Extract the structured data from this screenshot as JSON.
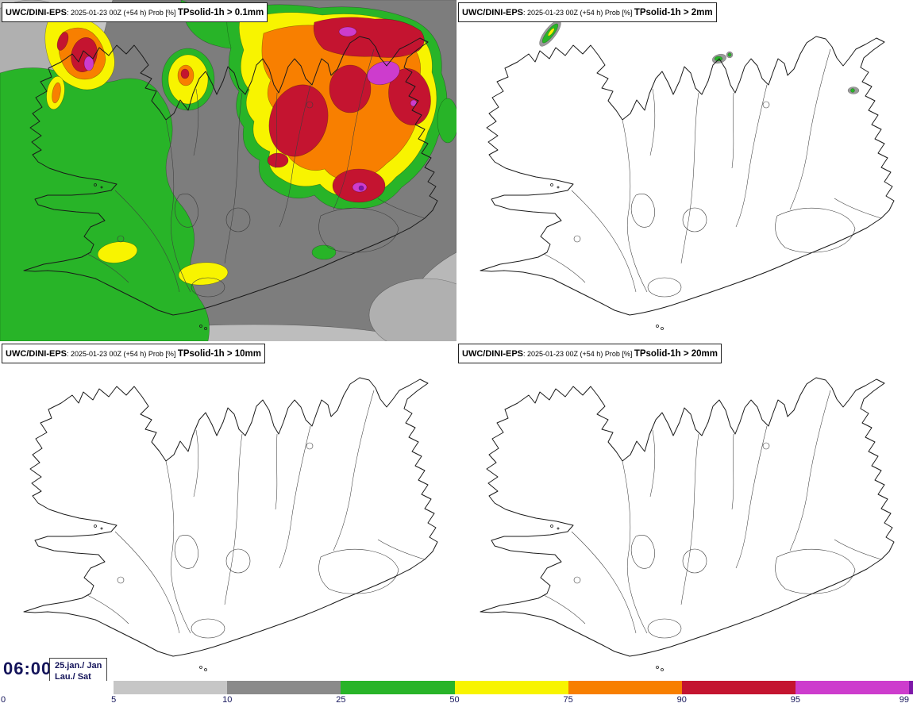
{
  "panels": [
    {
      "model": "UWC/DINI-EPS",
      "meta": ": 2025-01-23 00Z (+54 h) Prob [%] ",
      "param": "TPsolid-1h > 0.1mm"
    },
    {
      "model": "UWC/DINI-EPS",
      "meta": ": 2025-01-23 00Z (+54 h) Prob [%] ",
      "param": "TPsolid-1h > 2mm"
    },
    {
      "model": "UWC/DINI-EPS",
      "meta": ": 2025-01-23 00Z (+54 h) Prob [%] ",
      "param": "TPsolid-1h > 10mm"
    },
    {
      "model": "UWC/DINI-EPS",
      "meta": ": 2025-01-23 00Z (+54 h) Prob [%] ",
      "param": "TPsolid-1h > 20mm"
    }
  ],
  "footer": {
    "time": "06:00",
    "date_line1": "25.jan./ Jan",
    "date_line2": "Lau./ Sat"
  },
  "chart_data": {
    "type": "heatmap",
    "title": "UWC/DINI-EPS ensemble probability [%] of 1h solid precipitation over Iceland, run 2025-01-23 00Z (+54 h), valid 06:00 Sat 25 Jan",
    "map_region": "Iceland",
    "panels": [
      {
        "threshold_mm": 0.1,
        "label": "TPsolid-1h > 0.1mm",
        "summary": "Widespread signal: 50-99% over north and northeast Iceland, 25-50% over west/southwest, 5-25% elsewhere, local >95% cores in NW fjords and NE"
      },
      {
        "threshold_mm": 2,
        "label": "TPsolid-1h > 2mm",
        "summary": "Only isolated 5-50% spots on northwest, north and east coasts"
      },
      {
        "threshold_mm": 10,
        "label": "TPsolid-1h > 10mm",
        "summary": "No areas above 5%"
      },
      {
        "threshold_mm": 20,
        "label": "TPsolid-1h > 20mm",
        "summary": "No areas above 5%"
      }
    ],
    "colorbar": {
      "unit": "%",
      "ticks": [
        "0",
        "5",
        "10",
        "25",
        "50",
        "75",
        "90",
        "95",
        "99"
      ],
      "segments": [
        {
          "from": 0,
          "to": 5,
          "color": "#ffffff"
        },
        {
          "from": 5,
          "to": 10,
          "color": "#c6c6c6"
        },
        {
          "from": 10,
          "to": 25,
          "color": "#8a8a8a"
        },
        {
          "from": 25,
          "to": 50,
          "color": "#28b428"
        },
        {
          "from": 50,
          "to": 75,
          "color": "#f8f400"
        },
        {
          "from": 75,
          "to": 90,
          "color": "#f87f00"
        },
        {
          "from": 90,
          "to": 95,
          "color": "#c41430"
        },
        {
          "from": 95,
          "to": 99,
          "color": "#cd3ccd"
        },
        {
          "from": 99,
          "to": 100,
          "color": "#7d17a8"
        }
      ]
    }
  }
}
